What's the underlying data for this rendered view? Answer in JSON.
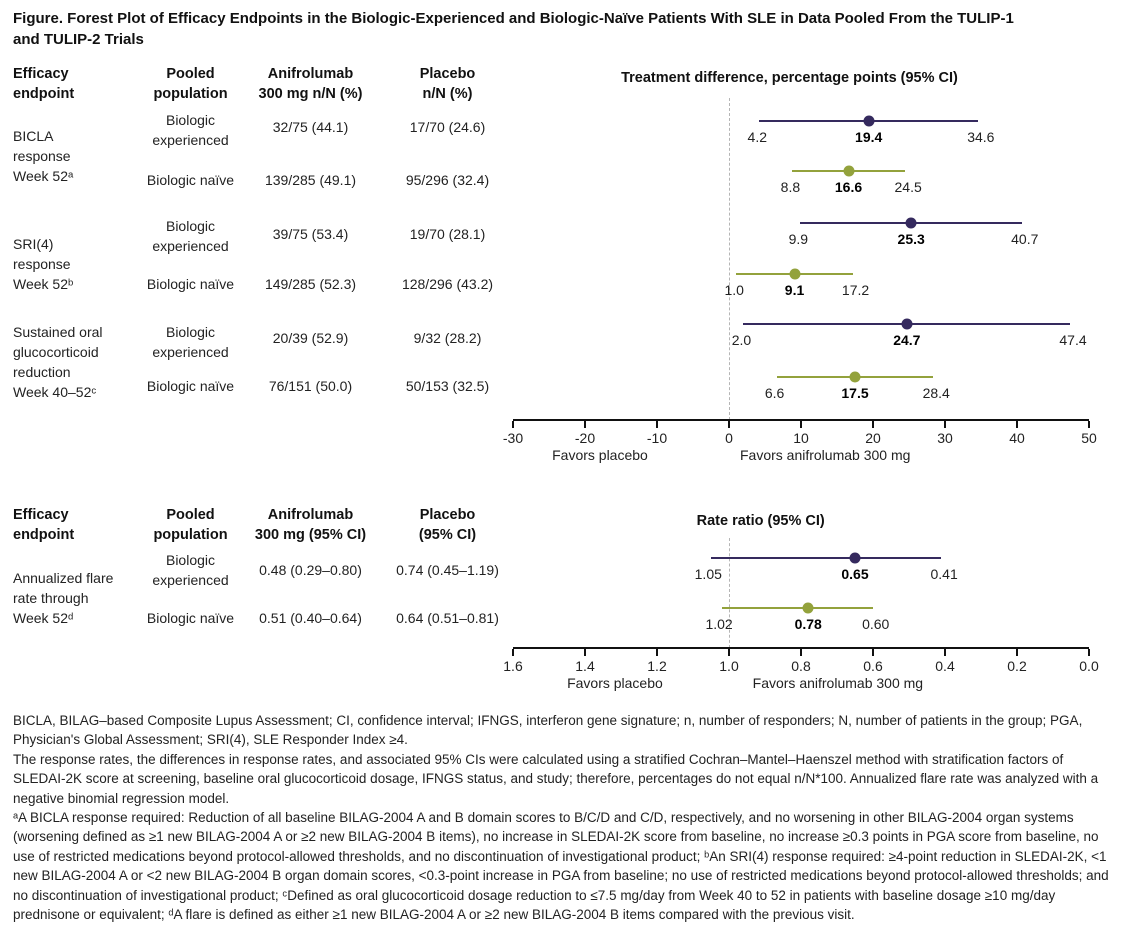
{
  "figure_title": "Figure. Forest Plot of Efficacy Endpoints in the Biologic-Experienced and Biologic-Naïve Patients With SLE in Data Pooled From the TULIP-1\nand TULIP-2 Trials",
  "colors": {
    "experienced": "#352a5e",
    "naive": "#93a23c",
    "reference_line": "#b5b5b5",
    "axis": "#111111"
  },
  "table1": {
    "headers": {
      "endpoint": "Efficacy\nendpoint",
      "population": "Pooled\npopulation",
      "anifrolumab": "Anifrolumab\n300 mg n/N (%)",
      "placebo": "Placebo\nn/N (%)"
    },
    "endpoints": [
      {
        "label": "BICLA\nresponse\nWeek 52ᵃ"
      },
      {
        "label": "SRI(4)\nresponse\nWeek 52ᵇ"
      },
      {
        "label": "Sustained oral\nglucocorticoid\nreduction\nWeek 40–52ᶜ"
      }
    ],
    "rows": [
      {
        "population": "Biologic\nexperienced",
        "anifrolumab": "32/75 (44.1)",
        "placebo": "17/70 (24.6)"
      },
      {
        "population": "Biologic naïve",
        "anifrolumab": "139/285 (49.1)",
        "placebo": "95/296 (32.4)"
      },
      {
        "population": "Biologic\nexperienced",
        "anifrolumab": "39/75 (53.4)",
        "placebo": "19/70 (28.1)"
      },
      {
        "population": "Biologic naïve",
        "anifrolumab": "149/285 (52.3)",
        "placebo": "128/296 (43.2)"
      },
      {
        "population": "Biologic\nexperienced",
        "anifrolumab": "20/39 (52.9)",
        "placebo": "9/32 (28.2)"
      },
      {
        "population": "Biologic naïve",
        "anifrolumab": "76/151 (50.0)",
        "placebo": "50/153 (32.5)"
      }
    ]
  },
  "table2": {
    "headers": {
      "endpoint": "Efficacy\nendpoint",
      "population": "Pooled\npopulation",
      "anifrolumab": "Anifrolumab\n300 mg (95% CI)",
      "placebo": "Placebo\n(95% CI)"
    },
    "endpoints": [
      {
        "label": "Annualized flare\nrate through\nWeek 52ᵈ"
      }
    ],
    "rows": [
      {
        "population": "Biologic\nexperienced",
        "anifrolumab": "0.48 (0.29–0.80)",
        "placebo": "0.74 (0.45–1.19)"
      },
      {
        "population": "Biologic naïve",
        "anifrolumab": "0.51 (0.40–0.64)",
        "placebo": "0.64 (0.51–0.81)"
      }
    ]
  },
  "chart_data": [
    {
      "type": "forest",
      "title": "Treatment difference, percentage points (95% CI)",
      "favors_left": "Favors placebo",
      "favors_right": "Favors anifrolumab 300 mg",
      "axis": {
        "left_value": -30,
        "right_value": 50,
        "reference": 0,
        "tick_values": [
          -30,
          -20,
          -10,
          0,
          10,
          20,
          30,
          40,
          50
        ],
        "tick_labels": [
          "-30",
          "-20",
          "-10",
          "0",
          "10",
          "20",
          "30",
          "40",
          "50"
        ]
      },
      "points": [
        {
          "endpoint": "BICLA response Week 52",
          "group": "experienced",
          "estimate": 19.4,
          "ci_low": 4.2,
          "ci_high": 34.6,
          "label_low": "4.2",
          "label_estimate": "19.4",
          "label_high": "34.6"
        },
        {
          "endpoint": "BICLA response Week 52",
          "group": "naive",
          "estimate": 16.6,
          "ci_low": 8.8,
          "ci_high": 24.5,
          "label_low": "8.8",
          "label_estimate": "16.6",
          "label_high": "24.5"
        },
        {
          "endpoint": "SRI(4) response Week 52",
          "group": "experienced",
          "estimate": 25.3,
          "ci_low": 9.9,
          "ci_high": 40.7,
          "label_low": "9.9",
          "label_estimate": "25.3",
          "label_high": "40.7"
        },
        {
          "endpoint": "SRI(4) response Week 52",
          "group": "naive",
          "estimate": 9.1,
          "ci_low": 1.0,
          "ci_high": 17.2,
          "label_low": "1.0",
          "label_estimate": "9.1",
          "label_high": "17.2"
        },
        {
          "endpoint": "Sustained oral glucocorticoid reduction Week 40–52",
          "group": "experienced",
          "estimate": 24.7,
          "ci_low": 2.0,
          "ci_high": 47.4,
          "label_low": "2.0",
          "label_estimate": "24.7",
          "label_high": "47.4"
        },
        {
          "endpoint": "Sustained oral glucocorticoid reduction Week 40–52",
          "group": "naive",
          "estimate": 17.5,
          "ci_low": 6.6,
          "ci_high": 28.4,
          "label_low": "6.6",
          "label_estimate": "17.5",
          "label_high": "28.4"
        }
      ]
    },
    {
      "type": "forest",
      "title": "Rate ratio (95% CI)",
      "favors_left": "Favors placebo",
      "favors_right": "Favors anifrolumab 300 mg",
      "axis": {
        "left_value": 1.6,
        "right_value": 0.0,
        "reference": 1.0,
        "tick_values": [
          1.6,
          1.4,
          1.2,
          1.0,
          0.8,
          0.6,
          0.4,
          0.2,
          0.0
        ],
        "tick_labels": [
          "1.6",
          "1.4",
          "1.2",
          "1.0",
          "0.8",
          "0.6",
          "0.4",
          "0.2",
          "0.0"
        ]
      },
      "points": [
        {
          "endpoint": "Annualized flare rate through Week 52",
          "group": "experienced",
          "estimate": 0.65,
          "ci_low": 1.05,
          "ci_high": 0.41,
          "label_low": "1.05",
          "label_estimate": "0.65",
          "label_high": "0.41"
        },
        {
          "endpoint": "Annualized flare rate through Week 52",
          "group": "naive",
          "estimate": 0.78,
          "ci_low": 1.02,
          "ci_high": 0.6,
          "label_low": "1.02",
          "label_estimate": "0.78",
          "label_high": "0.60"
        }
      ]
    }
  ],
  "footnotes": {
    "abbreviations": "BICLA, BILAG–based Composite Lupus Assessment; CI, confidence interval; IFNGS, interferon gene signature; n, number of responders; N, number of patients in the group; PGA, Physician's Global Assessment; SRI(4), SLE Responder Index ≥4.",
    "methods": "The response rates, the differences in response rates, and associated 95% CIs were calculated using a stratified Cochran–Mantel–Haenszel method with stratification factors of SLEDAI-2K score at screening, baseline oral glucocorticoid dosage, IFNGS status, and study; therefore, percentages do not equal n/N*100. Annualized flare rate was analyzed with a negative binomial regression model.",
    "definitions": "ᵃA BICLA response required: Reduction of all baseline BILAG-2004 A and B domain scores to B/C/D and C/D, respectively, and no worsening in other BILAG-2004 organ systems (worsening defined as ≥1 new BILAG-2004 A or ≥2 new BILAG-2004 B items), no increase in SLEDAI-2K score from baseline, no increase ≥0.3 points in PGA score from baseline, no use of restricted medications beyond protocol-allowed thresholds, and no discontinuation of investigational product; ᵇAn SRI(4) response required: ≥4-point reduction in SLEDAI-2K, <1 new BILAG-2004 A or <2 new BILAG-2004 B organ domain scores, <0.3-point increase in PGA from baseline; no use of restricted medications beyond protocol-allowed thresholds; and no discontinuation of investigational product; ᶜDefined as oral glucocorticoid dosage reduction to ≤7.5 mg/day from Week 40 to 52 in patients with baseline dosage ≥10 mg/day prednisone or equivalent; ᵈA flare is defined as either ≥1 new BILAG-2004 A or ≥2 new BILAG-2004 B items compared with the previous visit."
  }
}
